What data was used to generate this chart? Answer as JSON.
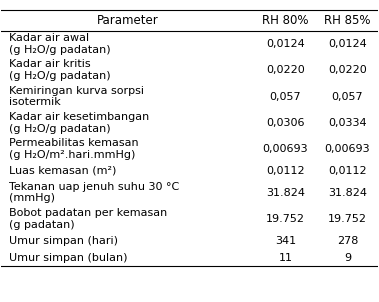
{
  "headers": [
    "Parameter",
    "RH 80%",
    "RH 85%"
  ],
  "rows": [
    {
      "param_line1": "Kadar air awal",
      "param_line2": "(g H₂O/g padatan)",
      "rh80": "0,0124",
      "rh85": "0,0124"
    },
    {
      "param_line1": "Kadar air kritis",
      "param_line2": "(g H₂O/g padatan)",
      "rh80": "0,0220",
      "rh85": "0,0220"
    },
    {
      "param_line1": "Kemiringan kurva sorpsi",
      "param_line2": "isotermik",
      "rh80": "0,057",
      "rh85": "0,057"
    },
    {
      "param_line1": "Kadar air kesetimbangan",
      "param_line2": "(g H₂O/g padatan)",
      "rh80": "0,0306",
      "rh85": "0,0334"
    },
    {
      "param_line1": "Permeabilitas kemasan",
      "param_line2": "(g H₂O/m².hari.mmHg)",
      "rh80": "0,00693",
      "rh85": "0,00693"
    },
    {
      "param_line1": "Luas kemasan (m²)",
      "param_line2": "",
      "rh80": "0,0112",
      "rh85": "0,0112"
    },
    {
      "param_line1": "Tekanan uap jenuh suhu 30 °C",
      "param_line2": "(mmHg)",
      "rh80": "31.824",
      "rh85": "31.824"
    },
    {
      "param_line1": "Bobot padatan per kemasan",
      "param_line2": "(g padatan)",
      "rh80": "19.752",
      "rh85": "19.752"
    },
    {
      "param_line1": "Umur simpan (hari)",
      "param_line2": "",
      "rh80": "341",
      "rh85": "278"
    },
    {
      "param_line1": "Umur simpan (bulan)",
      "param_line2": "",
      "rh80": "11",
      "rh85": "9"
    }
  ],
  "bg_color": "#ffffff",
  "text_color": "#000000",
  "header_fontsize": 8.5,
  "body_fontsize": 8.0,
  "line_color": "#000000"
}
